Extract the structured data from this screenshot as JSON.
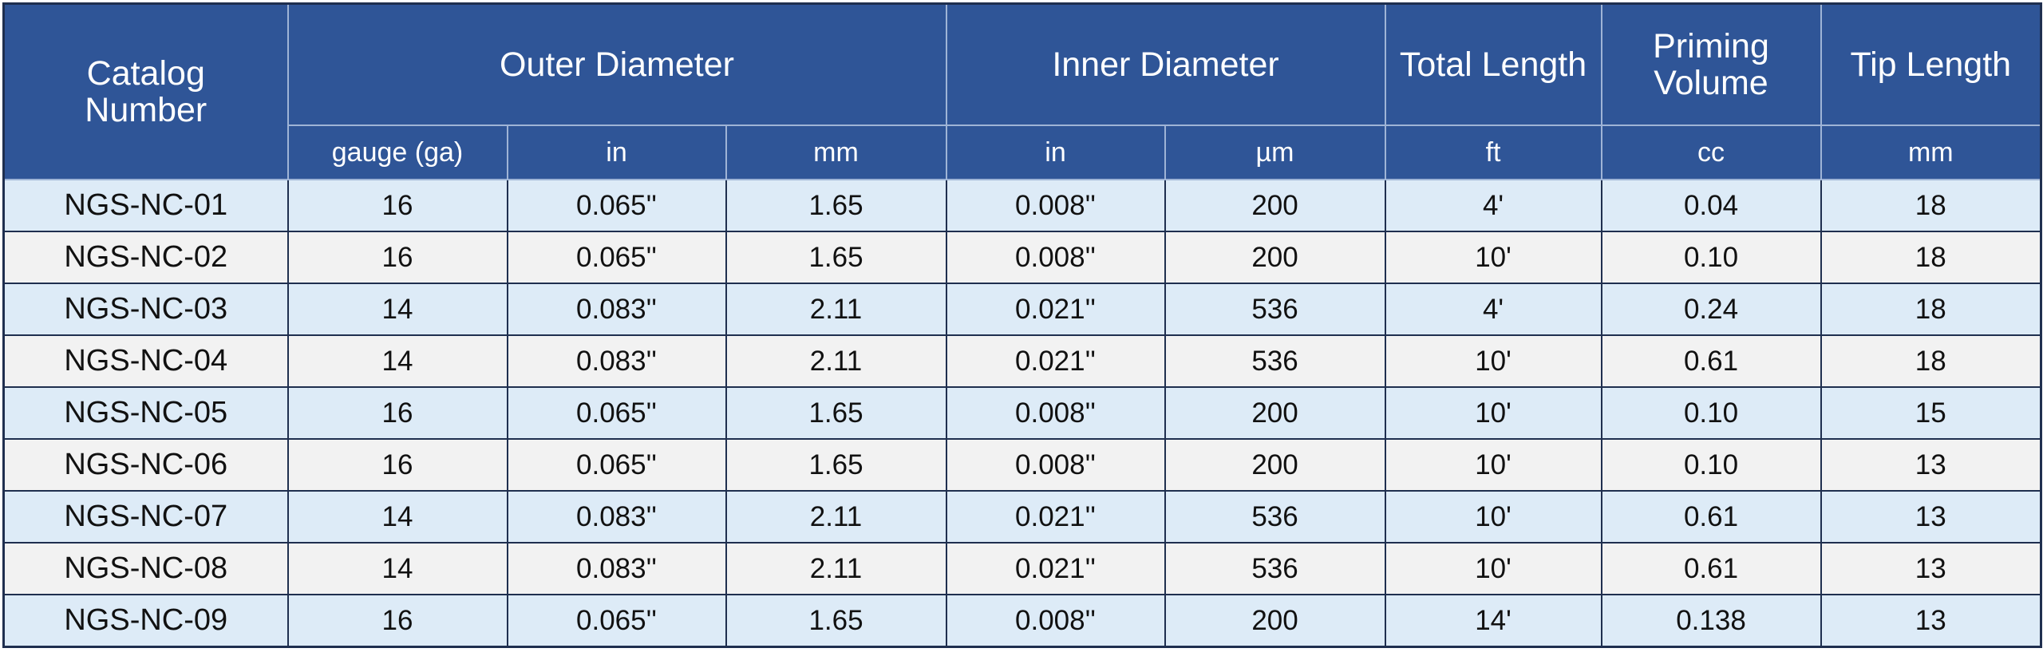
{
  "table": {
    "header": {
      "groups": [
        "Catalog Number",
        "Outer Diameter",
        "Inner Diameter",
        "Total Length",
        "Priming Volume",
        "Tip Length"
      ],
      "units": [
        "gauge (ga)",
        "in",
        "mm",
        "in",
        "µm",
        "ft",
        "cc",
        "mm"
      ]
    },
    "rows": [
      [
        "NGS-NC-01",
        "16",
        "0.065''",
        "1.65",
        "0.008''",
        "200",
        "4'",
        "0.04",
        "18"
      ],
      [
        "NGS-NC-02",
        "16",
        "0.065''",
        "1.65",
        "0.008''",
        "200",
        "10'",
        "0.10",
        "18"
      ],
      [
        "NGS-NC-03",
        "14",
        "0.083''",
        "2.11",
        "0.021''",
        "536",
        "4'",
        "0.24",
        "18"
      ],
      [
        "NGS-NC-04",
        "14",
        "0.083''",
        "2.11",
        "0.021''",
        "536",
        "10'",
        "0.61",
        "18"
      ],
      [
        "NGS-NC-05",
        "16",
        "0.065''",
        "1.65",
        "0.008''",
        "200",
        "10'",
        "0.10",
        "15"
      ],
      [
        "NGS-NC-06",
        "16",
        "0.065''",
        "1.65",
        "0.008''",
        "200",
        "10'",
        "0.10",
        "13"
      ],
      [
        "NGS-NC-07",
        "14",
        "0.083''",
        "2.11",
        "0.021''",
        "536",
        "10'",
        "0.61",
        "13"
      ],
      [
        "NGS-NC-08",
        "14",
        "0.083''",
        "2.11",
        "0.021''",
        "536",
        "10'",
        "0.61",
        "13"
      ],
      [
        "NGS-NC-09",
        "16",
        "0.065''",
        "1.65",
        "0.008''",
        "200",
        "14'",
        "0.138",
        "13"
      ]
    ]
  }
}
